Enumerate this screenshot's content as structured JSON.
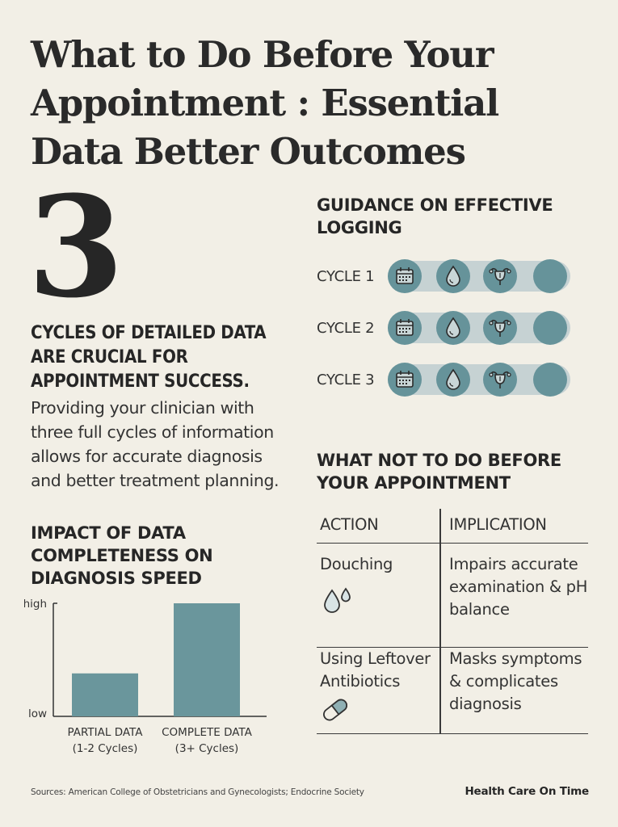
{
  "header": {
    "title": "What to Do Before Your Appointment : Essential Data Better Outcomes"
  },
  "stat": {
    "number": "3",
    "caption": "CYCLES OF DETAILED DATA ARE CRUCIAL FOR APPOINTMENT SUCCESS.",
    "body": "Providing your clinician with three full cycles of information allows for accurate diagnosis and better treatment planning."
  },
  "logging": {
    "heading": "GUIDANCE ON EFFECTIVE LOGGING",
    "cycles": [
      {
        "label": "CYCLE 1"
      },
      {
        "label": "CYCLE 2"
      },
      {
        "label": "CYCLE 3"
      }
    ],
    "icons": [
      "calendar-icon",
      "droplet-icon",
      "uterus-icon",
      "blank-dot"
    ],
    "colors": {
      "dot": "#66939a",
      "track": "#c6d2d3"
    }
  },
  "chart_data": {
    "type": "bar",
    "title": "IMPACT OF DATA COMPLETENESS ON DIAGNOSIS SPEED",
    "categories": [
      "PARTIAL DATA\n(1-2 Cycles)",
      "COMPLETE DATA\n(3+ Cycles)"
    ],
    "values": [
      0.38,
      1.0
    ],
    "ytick_labels": [
      "low",
      "high"
    ],
    "ylim": [
      0,
      1.0
    ],
    "grid": false,
    "bar_color": "#6a969c"
  },
  "not_to_do": {
    "heading": "WHAT NOT TO DO BEFORE YOUR APPOINTMENT",
    "columns": [
      "ACTION",
      "IMPLICATION"
    ],
    "rows": [
      {
        "action": "Douching",
        "icon": "droplets-icon",
        "implication": "Impairs accurate examination & pH balance"
      },
      {
        "action": "Using Leftover Antibiotics",
        "icon": "pill-icon",
        "implication": "Masks symptoms & complicates diagnosis"
      }
    ]
  },
  "footer": {
    "sources": "Sources: American College of Obstetricians and Gynecologists; Endocrine Society",
    "brand": "Health Care On Time"
  }
}
